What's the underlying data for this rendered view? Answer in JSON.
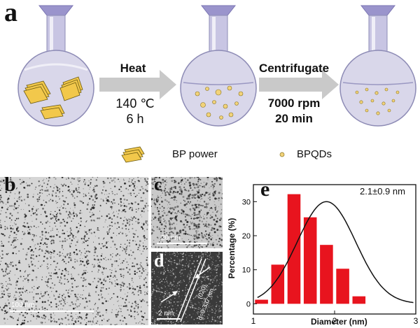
{
  "panel_a": {
    "letter": "a",
    "step1": {
      "title": "Heat",
      "line1": "140 ℃",
      "line2": "6 h"
    },
    "step2": {
      "title": "Centrifugate",
      "line1": "7000 rpm",
      "line2": "20 min"
    },
    "legend": {
      "bp": "BP power",
      "qd": "BPQDs"
    },
    "colors": {
      "flask_fill": "#d9d7ea",
      "flask_stroke": "#8d8bb5",
      "neck": "#b9b6d8",
      "cap": "#9a94cc",
      "flake": "#f2c84b",
      "arrow": "#c8c8c8"
    }
  },
  "panel_b": {
    "letter": "b",
    "scale": "100 nm"
  },
  "panel_c": {
    "letter": "c",
    "scale": "20 nm"
  },
  "panel_d": {
    "letter": "d",
    "scale": "2 nm",
    "plane": "(020)",
    "spacing": "d=0.337 nm"
  },
  "panel_e": {
    "letter": "e",
    "annotation": "2.1±0.9 nm",
    "xlabel": "Diameter (nm)",
    "ylabel": "Percentage (%)",
    "xticks": [
      "1",
      "2",
      "3"
    ],
    "yticks": [
      "0",
      "10",
      "20",
      "30"
    ]
  },
  "chart_data": {
    "type": "bar",
    "title": "",
    "xlabel": "Diameter (nm)",
    "ylabel": "Percentage (%)",
    "xlim": [
      1,
      3
    ],
    "ylim": [
      -3,
      35
    ],
    "bar_color": "#e8141e",
    "bin_centers": [
      1.1,
      1.3,
      1.5,
      1.7,
      1.9,
      2.1,
      2.3,
      2.5,
      2.7,
      2.9
    ],
    "values": [
      1.2,
      11.5,
      32.2,
      25.4,
      17.3,
      10.3,
      2.2
    ],
    "bar_x": [
      1.1,
      1.3,
      1.5,
      1.7,
      1.9,
      2.1,
      2.3
    ],
    "fit": {
      "type": "gaussian",
      "center": 1.9,
      "amplitude": 30,
      "sigma": 0.36
    }
  }
}
